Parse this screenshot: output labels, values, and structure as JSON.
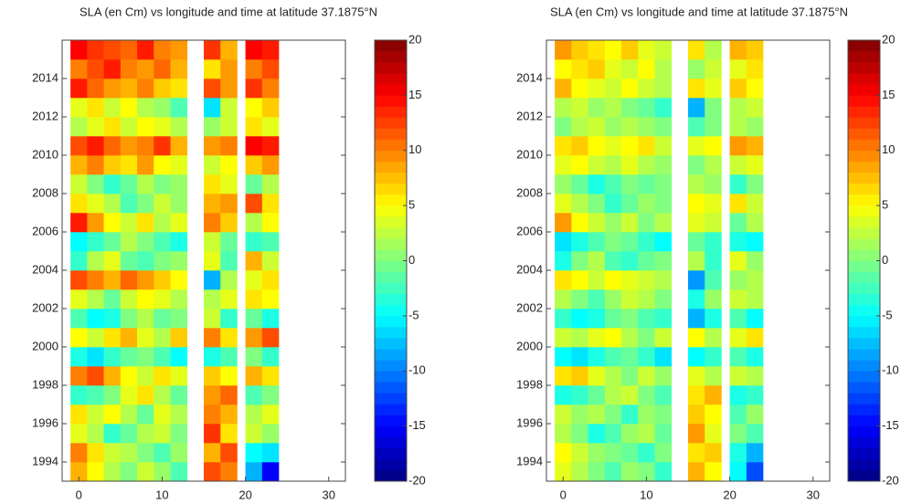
{
  "chart_data": [
    {
      "type": "heatmap",
      "title": "SLA (en Cm) vs longitude and time at latitude 37.1875°N",
      "x": [
        0,
        2,
        4,
        6,
        8,
        10,
        12,
        16,
        18,
        21,
        23
      ],
      "y": [
        1993.5,
        1994.5,
        1995.5,
        1996.5,
        1997.5,
        1998.5,
        1999.5,
        2000.5,
        2001.5,
        2002.5,
        2003.5,
        2004.5,
        2005.5,
        2006.5,
        2007.5,
        2008.5,
        2009.5,
        2010.5,
        2011.5,
        2012.5,
        2013.5,
        2014.5,
        2015.5
      ],
      "z": [
        [
          8,
          5,
          2,
          0,
          3,
          1,
          -2,
          12,
          10,
          -8,
          -15
        ],
        [
          10,
          6,
          3,
          2,
          0,
          -2,
          1,
          8,
          12,
          -5,
          -6
        ],
        [
          4,
          2,
          -3,
          -1,
          2,
          3,
          0,
          13,
          6,
          3,
          1
        ],
        [
          6,
          3,
          5,
          2,
          -1,
          4,
          2,
          10,
          8,
          2,
          4
        ],
        [
          -3,
          -2,
          0,
          4,
          6,
          2,
          -1,
          9,
          11,
          -2,
          0
        ],
        [
          10,
          12,
          8,
          5,
          3,
          6,
          4,
          7,
          5,
          8,
          6
        ],
        [
          -4,
          -6,
          -3,
          -1,
          0,
          -2,
          -5,
          -4,
          -2,
          0,
          -3
        ],
        [
          5,
          3,
          6,
          8,
          4,
          2,
          7,
          10,
          6,
          9,
          12
        ],
        [
          -2,
          -5,
          -4,
          0,
          2,
          -1,
          0,
          3,
          -3,
          -1,
          -4
        ],
        [
          4,
          2,
          -1,
          3,
          5,
          4,
          2,
          2,
          4,
          6,
          5
        ],
        [
          12,
          10,
          8,
          11,
          9,
          7,
          5,
          -8,
          2,
          4,
          6
        ],
        [
          -3,
          2,
          4,
          -1,
          -2,
          0,
          1,
          4,
          -2,
          8,
          3
        ],
        [
          -5,
          -3,
          -1,
          2,
          0,
          -2,
          -4,
          3,
          -1,
          -3,
          -2
        ],
        [
          14,
          9,
          5,
          3,
          6,
          2,
          4,
          10,
          7,
          2,
          5
        ],
        [
          6,
          4,
          2,
          -2,
          0,
          3,
          1,
          8,
          9,
          12,
          6
        ],
        [
          3,
          0,
          -3,
          -1,
          2,
          0,
          1,
          6,
          4,
          -1,
          2
        ],
        [
          8,
          10,
          7,
          6,
          9,
          5,
          4,
          3,
          5,
          7,
          9
        ],
        [
          12,
          14,
          11,
          9,
          10,
          13,
          8,
          9,
          10,
          15,
          14
        ],
        [
          2,
          4,
          6,
          3,
          5,
          4,
          2,
          1,
          3,
          6,
          4
        ],
        [
          4,
          6,
          3,
          5,
          2,
          1,
          -2,
          -6,
          3,
          5,
          7
        ],
        [
          14,
          11,
          9,
          8,
          10,
          7,
          6,
          12,
          9,
          13,
          10
        ],
        [
          10,
          12,
          14,
          10,
          9,
          11,
          8,
          6,
          9,
          10,
          12
        ],
        [
          15,
          13,
          12,
          11,
          14,
          10,
          9,
          13,
          8,
          15,
          14
        ]
      ],
      "xlim": [
        -2,
        32
      ],
      "xticks": [
        0,
        10,
        20,
        30
      ],
      "ylim": [
        1993,
        2016
      ],
      "yticks": [
        1994,
        1996,
        1998,
        2000,
        2002,
        2004,
        2006,
        2008,
        2010,
        2012,
        2014
      ],
      "colormap": "jet",
      "clim": [
        -20,
        20
      ],
      "cticks": [
        -20,
        -15,
        -10,
        -5,
        0,
        5,
        10,
        15,
        20
      ]
    },
    {
      "type": "heatmap",
      "title": "SLA (en Cm) vs longitude and time at latitude 37.1875°N",
      "x": [
        0,
        2,
        4,
        6,
        8,
        10,
        12,
        16,
        18,
        21,
        23
      ],
      "y": [
        1993.5,
        1994.5,
        1995.5,
        1996.5,
        1997.5,
        1998.5,
        1999.5,
        2000.5,
        2001.5,
        2002.5,
        2003.5,
        2004.5,
        2005.5,
        2006.5,
        2007.5,
        2008.5,
        2009.5,
        2010.5,
        2011.5,
        2012.5,
        2013.5,
        2014.5,
        2015.5
      ],
      "z": [
        [
          4,
          2,
          0,
          -2,
          1,
          0,
          -3,
          8,
          5,
          -5,
          -12
        ],
        [
          5,
          3,
          1,
          0,
          -1,
          -3,
          0,
          6,
          7,
          -4,
          -8
        ],
        [
          2,
          0,
          -4,
          -2,
          1,
          2,
          -1,
          9,
          4,
          0,
          -2
        ],
        [
          3,
          1,
          2,
          0,
          -3,
          1,
          0,
          7,
          5,
          -2,
          1
        ],
        [
          -4,
          -3,
          -1,
          2,
          3,
          0,
          -2,
          6,
          8,
          -4,
          -3
        ],
        [
          6,
          7,
          4,
          2,
          0,
          3,
          1,
          4,
          2,
          3,
          2
        ],
        [
          -5,
          -6,
          -4,
          -2,
          -1,
          -3,
          -6,
          -5,
          -3,
          -2,
          -4
        ],
        [
          3,
          2,
          4,
          5,
          2,
          0,
          3,
          5,
          2,
          4,
          6
        ],
        [
          -3,
          -5,
          -4,
          -1,
          0,
          -2,
          -3,
          -8,
          -4,
          -2,
          -5
        ],
        [
          2,
          0,
          -2,
          1,
          3,
          2,
          0,
          -4,
          1,
          3,
          2
        ],
        [
          6,
          5,
          3,
          5,
          4,
          3,
          2,
          -9,
          -2,
          1,
          2
        ],
        [
          -4,
          0,
          2,
          -2,
          -3,
          -1,
          0,
          2,
          -3,
          4,
          1
        ],
        [
          -6,
          -4,
          -2,
          0,
          -1,
          -3,
          -5,
          -1,
          -3,
          -4,
          -5
        ],
        [
          9,
          5,
          3,
          1,
          3,
          0,
          2,
          4,
          3,
          -1,
          2
        ],
        [
          4,
          2,
          0,
          -3,
          -1,
          1,
          0,
          5,
          4,
          6,
          3
        ],
        [
          1,
          -1,
          -4,
          -2,
          0,
          -1,
          0,
          2,
          1,
          -3,
          0
        ],
        [
          4,
          5,
          3,
          2,
          4,
          2,
          1,
          0,
          2,
          3,
          4
        ],
        [
          6,
          7,
          5,
          4,
          5,
          6,
          3,
          4,
          5,
          9,
          8
        ],
        [
          0,
          2,
          3,
          1,
          2,
          1,
          0,
          -2,
          0,
          2,
          1
        ],
        [
          2,
          3,
          1,
          2,
          0,
          -1,
          -3,
          -8,
          0,
          2,
          3
        ],
        [
          8,
          5,
          4,
          3,
          5,
          3,
          2,
          6,
          4,
          7,
          5
        ],
        [
          5,
          6,
          7,
          4,
          3,
          5,
          2,
          1,
          3,
          4,
          6
        ],
        [
          9,
          7,
          6,
          5,
          7,
          4,
          3,
          6,
          2,
          8,
          7
        ]
      ],
      "xlim": [
        -2,
        32
      ],
      "xticks": [
        0,
        10,
        20,
        30
      ],
      "ylim": [
        1993,
        2016
      ],
      "yticks": [
        1994,
        1996,
        1998,
        2000,
        2002,
        2004,
        2006,
        2008,
        2010,
        2012,
        2014
      ],
      "colormap": "jet",
      "clim": [
        -20,
        20
      ],
      "cticks": [
        -20,
        -15,
        -10,
        -5,
        0,
        5,
        10,
        15,
        20
      ]
    }
  ]
}
